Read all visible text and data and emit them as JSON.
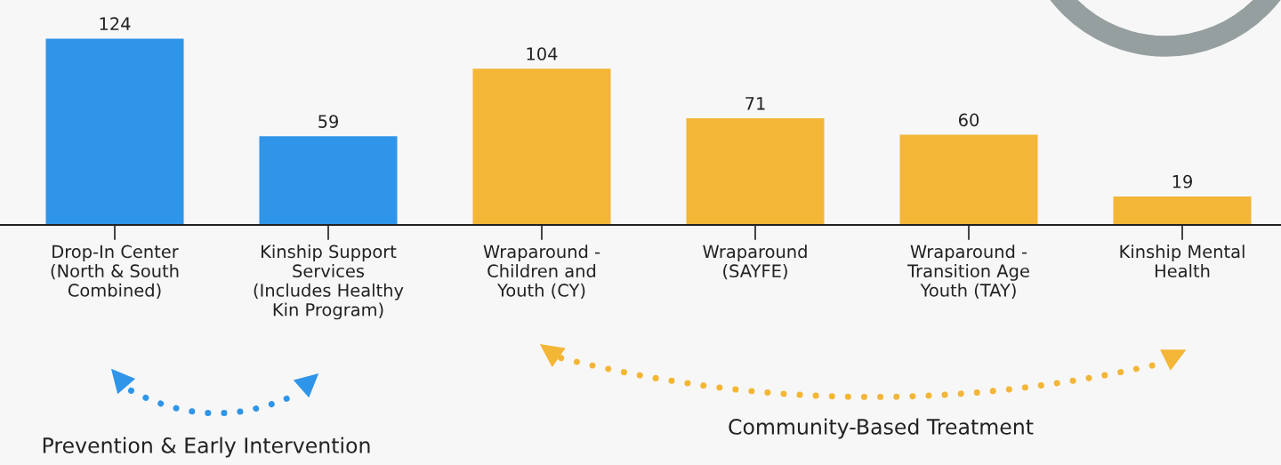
{
  "chart_data": {
    "type": "bar",
    "categories": [
      "Drop-In Center\n(North & South\nCombined)",
      "Kinship Support\nServices\n(Includes Healthy\nKin Program)",
      "Wraparound -\nChildren and\nYouth (CY)",
      "Wraparound\n(SAYFE)",
      "Wraparound -\nTransition Age\nYouth (TAY)",
      "Kinship Mental\nHealth"
    ],
    "values": [
      124,
      59,
      104,
      71,
      60,
      19
    ],
    "colors": [
      "#2f95e9",
      "#2f95e9",
      "#f4b637",
      "#f4b637",
      "#f4b637",
      "#f4b637"
    ],
    "data_labels": true,
    "grid": false,
    "legend": false,
    "annotations": [
      "Prevention & Early Intervention",
      "Community-Based Treatment"
    ]
  }
}
